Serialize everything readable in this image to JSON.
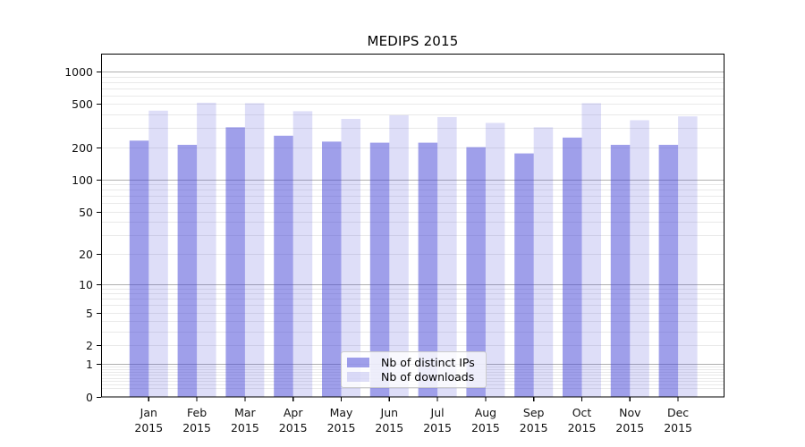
{
  "title": "MEDIPS 2015",
  "legend": {
    "items": [
      {
        "label": "Nb of distinct IPs",
        "series": "distinct_ips"
      },
      {
        "label": "Nb of downloads",
        "series": "downloads"
      }
    ]
  },
  "colors": {
    "bar_base": "70,70,215",
    "bar_dark_alpha": "0.52",
    "bar_light_alpha": "0.18",
    "grid_major": "#b0b0b0",
    "grid_minor": "#e9e9e9",
    "spine": "#000000",
    "tick_text": "#111111"
  },
  "chart_data": {
    "type": "bar",
    "title": "MEDIPS 2015",
    "scale": "log1p",
    "categories": [
      "Jan",
      "Feb",
      "Mar",
      "Apr",
      "May",
      "Jun",
      "Jul",
      "Aug",
      "Sep",
      "Oct",
      "Nov",
      "Dec"
    ],
    "category_year": "2015",
    "series": [
      {
        "name": "Nb of distinct IPs",
        "values": [
          230,
          210,
          305,
          255,
          225,
          220,
          220,
          200,
          175,
          245,
          210,
          210
        ]
      },
      {
        "name": "Nb of downloads",
        "values": [
          435,
          515,
          510,
          430,
          365,
          395,
          380,
          335,
          305,
          510,
          355,
          385
        ]
      }
    ],
    "y_ticks": [
      0,
      1,
      2,
      5,
      10,
      20,
      50,
      100,
      200,
      500,
      1000
    ],
    "y_tick_labels": [
      "0",
      "1",
      "2",
      "5",
      "10",
      "20",
      "50",
      "100",
      "200",
      "500",
      "1000"
    ],
    "grid_major_values": [
      1,
      10,
      100,
      1000
    ],
    "grid_minor_values": [
      0.2,
      0.3,
      0.4,
      0.5,
      0.6,
      0.7,
      0.8,
      0.9,
      2,
      3,
      4,
      5,
      6,
      7,
      8,
      9,
      20,
      30,
      40,
      50,
      60,
      70,
      80,
      90,
      200,
      300,
      400,
      500,
      600,
      700,
      800,
      900
    ],
    "ylim": [
      0,
      1100
    ],
    "grid": "on",
    "legend_position": "lower center",
    "xlabel": "",
    "ylabel": ""
  }
}
